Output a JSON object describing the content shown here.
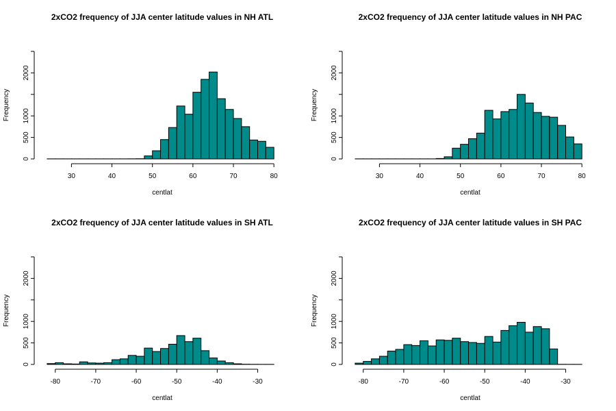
{
  "chart_data": [
    {
      "type": "bar",
      "title": "2xCO2 frequency of JJA center latitude values in NH ATL",
      "xlabel": "centlat",
      "ylabel": "Frequency",
      "bar_color": "#008b8b",
      "xlim": [
        23,
        82
      ],
      "ylim": [
        0,
        2500
      ],
      "xticks": [
        30,
        40,
        50,
        60,
        70,
        80
      ],
      "xtick_labels": [
        "30",
        "40",
        "50",
        "60",
        "70",
        "80"
      ],
      "yticks": [
        0,
        500,
        1000,
        2000
      ],
      "ytick_labels": [
        "0",
        "500",
        "1000",
        "2000"
      ],
      "bin_width": 2,
      "bin_starts": [
        24,
        26,
        28,
        30,
        32,
        34,
        36,
        38,
        40,
        42,
        44,
        46,
        48,
        50,
        52,
        54,
        56,
        58,
        60,
        62,
        64,
        66,
        68,
        70,
        72,
        74,
        76,
        78
      ],
      "values": [
        2,
        2,
        2,
        2,
        2,
        2,
        2,
        2,
        2,
        2,
        3,
        5,
        70,
        190,
        450,
        730,
        1230,
        1040,
        1550,
        1850,
        2020,
        1400,
        1150,
        940,
        750,
        440,
        410,
        270
      ]
    },
    {
      "type": "bar",
      "title": "2xCO2 frequency of JJA center latitude values in NH PAC",
      "xlabel": "centlat",
      "ylabel": "Frequency",
      "bar_color": "#008b8b",
      "xlim": [
        23,
        82
      ],
      "ylim": [
        0,
        2500
      ],
      "xticks": [
        30,
        40,
        50,
        60,
        70,
        80
      ],
      "xtick_labels": [
        "30",
        "40",
        "50",
        "60",
        "70",
        "80"
      ],
      "yticks": [
        0,
        500,
        1000,
        2000
      ],
      "ytick_labels": [
        "0",
        "500",
        "1000",
        "2000"
      ],
      "bin_width": 2,
      "bin_starts": [
        24,
        26,
        28,
        30,
        32,
        34,
        36,
        38,
        40,
        42,
        44,
        46,
        48,
        50,
        52,
        54,
        56,
        58,
        60,
        62,
        64,
        66,
        68,
        70,
        72,
        74,
        76,
        78
      ],
      "values": [
        2,
        2,
        2,
        2,
        2,
        2,
        2,
        2,
        2,
        2,
        10,
        50,
        250,
        340,
        470,
        600,
        1130,
        930,
        1100,
        1150,
        1500,
        1300,
        1080,
        990,
        970,
        780,
        510,
        350
      ]
    },
    {
      "type": "bar",
      "title": "2xCO2 frequency of JJA center latitude values in SH ATL",
      "xlabel": "centlat",
      "ylabel": "Frequency",
      "bar_color": "#008b8b",
      "xlim": [
        -83,
        -24
      ],
      "ylim": [
        0,
        2500
      ],
      "xticks": [
        -80,
        -70,
        -60,
        -50,
        -40,
        -30
      ],
      "xtick_labels": [
        "-80",
        "-70",
        "-60",
        "-50",
        "-40",
        "-30"
      ],
      "yticks": [
        0,
        500,
        1000,
        2000
      ],
      "ytick_labels": [
        "0",
        "500",
        "1000",
        "2000"
      ],
      "bin_width": 2,
      "bin_starts": [
        -82,
        -80,
        -78,
        -76,
        -74,
        -72,
        -70,
        -68,
        -66,
        -64,
        -62,
        -60,
        -58,
        -56,
        -54,
        -52,
        -50,
        -48,
        -46,
        -44,
        -42,
        -40,
        -38,
        -36,
        -34,
        -32,
        -30,
        -28
      ],
      "values": [
        20,
        40,
        15,
        10,
        60,
        35,
        30,
        40,
        110,
        130,
        210,
        190,
        380,
        300,
        370,
        470,
        670,
        530,
        610,
        320,
        150,
        80,
        40,
        15,
        5,
        3,
        2,
        2
      ]
    },
    {
      "type": "bar",
      "title": "2xCO2 frequency of JJA center latitude values in SH PAC",
      "xlabel": "centlat",
      "ylabel": "Frequency",
      "bar_color": "#008b8b",
      "xlim": [
        -83,
        -24
      ],
      "ylim": [
        0,
        2500
      ],
      "xticks": [
        -80,
        -70,
        -60,
        -50,
        -40,
        -30
      ],
      "xtick_labels": [
        "-80",
        "-70",
        "-60",
        "-50",
        "-40",
        "-30"
      ],
      "yticks": [
        0,
        500,
        1000,
        2000
      ],
      "ytick_labels": [
        "0",
        "500",
        "1000",
        "2000"
      ],
      "bin_width": 2,
      "bin_starts": [
        -82,
        -80,
        -78,
        -76,
        -74,
        -72,
        -70,
        -68,
        -66,
        -64,
        -62,
        -60,
        -58,
        -56,
        -54,
        -52,
        -50,
        -48,
        -46,
        -44,
        -42,
        -40,
        -38,
        -36,
        -34,
        -32,
        -30,
        -28
      ],
      "values": [
        30,
        70,
        130,
        190,
        310,
        350,
        460,
        440,
        550,
        430,
        570,
        560,
        610,
        530,
        510,
        490,
        650,
        520,
        790,
        900,
        980,
        750,
        880,
        830,
        360,
        3,
        2,
        2
      ]
    }
  ]
}
